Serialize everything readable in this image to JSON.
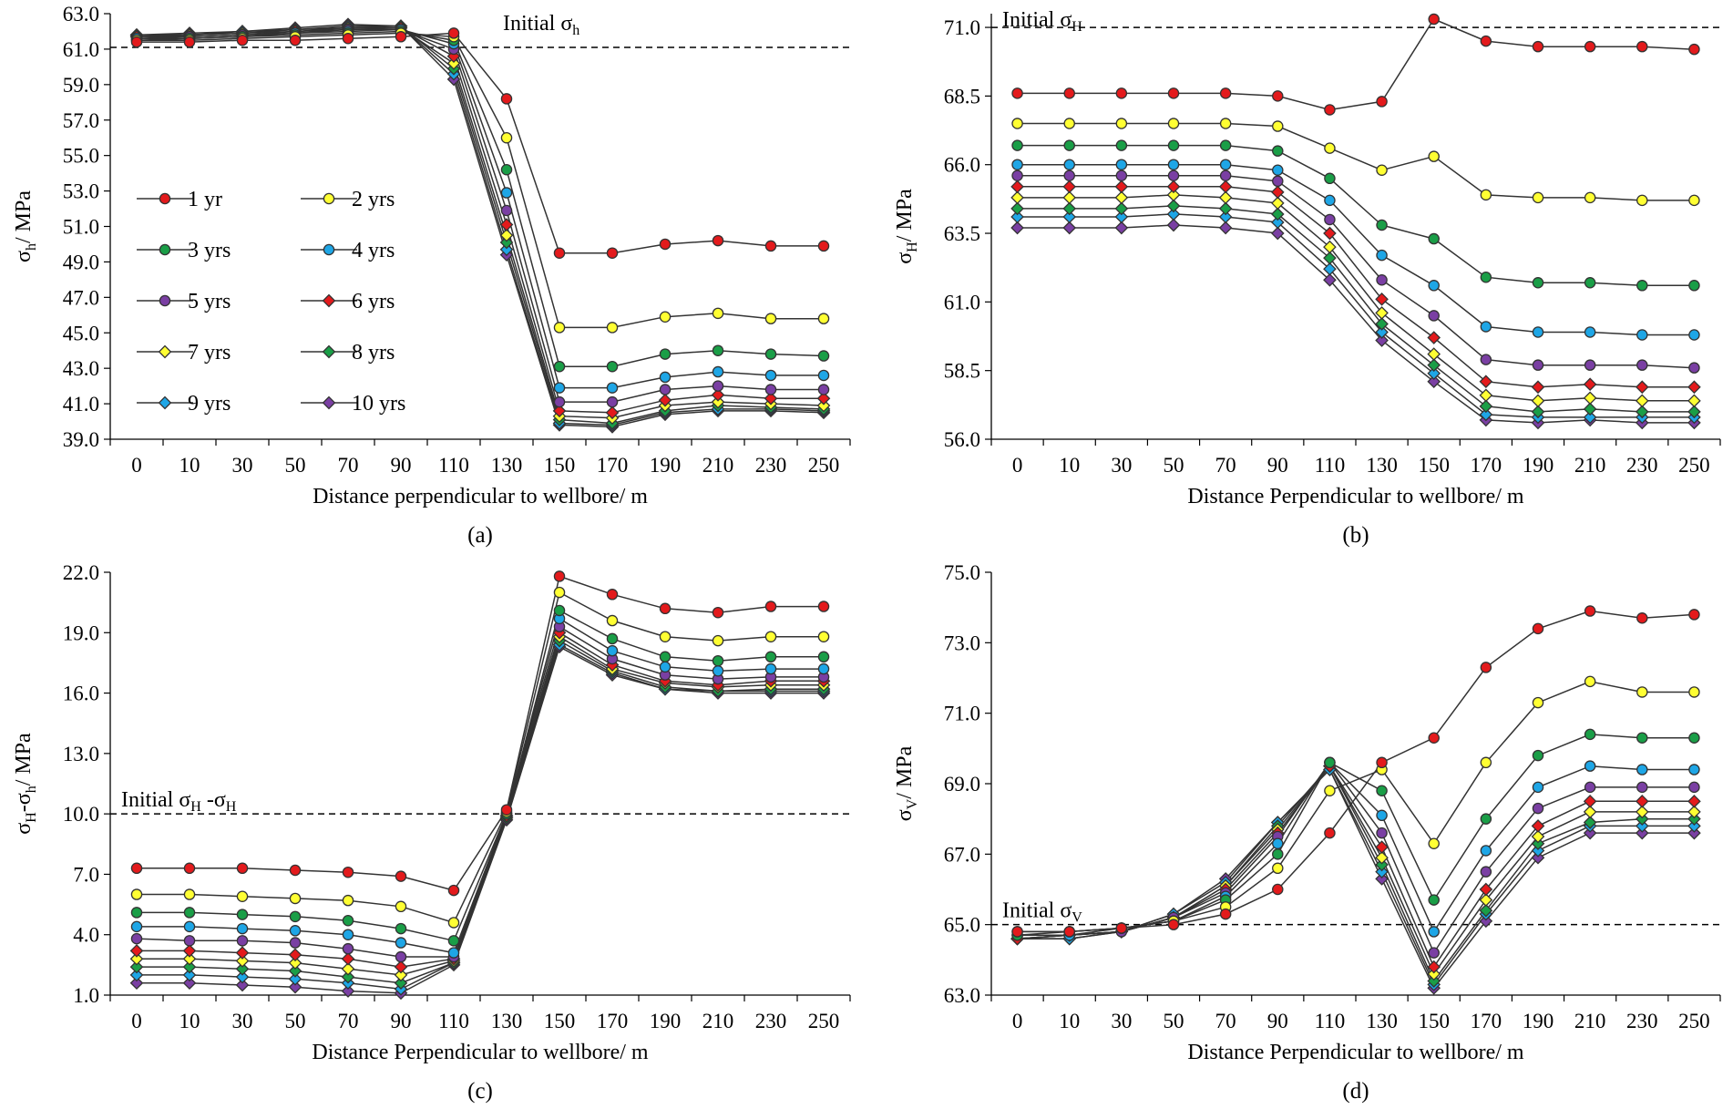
{
  "styles": {
    "series": [
      {
        "fill": "#e31a1c",
        "shape": "circle"
      },
      {
        "fill": "#ffff33",
        "shape": "circle"
      },
      {
        "fill": "#1a9e47",
        "shape": "circle"
      },
      {
        "fill": "#1ea6e6",
        "shape": "circle"
      },
      {
        "fill": "#7a3fa3",
        "shape": "circle"
      },
      {
        "fill": "#e31a1c",
        "shape": "diamond"
      },
      {
        "fill": "#ffff33",
        "shape": "diamond"
      },
      {
        "fill": "#1a9e47",
        "shape": "diamond"
      },
      {
        "fill": "#1ea6e6",
        "shape": "diamond"
      },
      {
        "fill": "#7a3fa3",
        "shape": "diamond"
      }
    ],
    "line_color": "#333333",
    "reference_line_color": "#000000"
  },
  "chart_data": [
    {
      "id": "a",
      "type": "line",
      "caption": "(a)",
      "xlabel": "Distance perpendicular to wellbore/ m",
      "ylabel": "σh/ MPa",
      "ylabel_main": "σ",
      "ylabel_sub": "h",
      "ylabel_rest": "/ MPa",
      "tick_labels": [
        "0",
        "10",
        "30",
        "50",
        "70",
        "90",
        "110",
        "130",
        "150",
        "170",
        "190",
        "210",
        "230",
        "250"
      ],
      "ylim": [
        39,
        63
      ],
      "ystep": 2,
      "ytick_decimals": 1,
      "reference": {
        "value": 61.1,
        "label": "Initial σh",
        "label_main": "Initial σ",
        "label_sub": "h",
        "label_pos": "top-center"
      },
      "legend": {
        "visible": true,
        "placement": "left-middle"
      },
      "series": [
        {
          "name": "1 yr",
          "values": [
            61.4,
            61.4,
            61.5,
            61.5,
            61.6,
            61.7,
            61.9,
            58.2,
            49.5,
            49.5,
            50.0,
            50.2,
            49.9,
            49.9
          ]
        },
        {
          "name": "2 yrs",
          "values": [
            61.5,
            61.5,
            61.6,
            61.7,
            61.8,
            61.9,
            61.7,
            56.0,
            45.3,
            45.3,
            45.9,
            46.1,
            45.8,
            45.8
          ]
        },
        {
          "name": "3 yrs",
          "values": [
            61.5,
            61.6,
            61.7,
            61.8,
            61.9,
            62.0,
            61.5,
            54.2,
            43.1,
            43.1,
            43.8,
            44.0,
            43.8,
            43.7
          ]
        },
        {
          "name": "4 yrs",
          "values": [
            61.6,
            61.6,
            61.7,
            61.9,
            62.0,
            62.1,
            61.3,
            52.9,
            41.9,
            41.9,
            42.5,
            42.8,
            42.6,
            42.6
          ]
        },
        {
          "name": "5 yrs",
          "values": [
            61.6,
            61.7,
            61.8,
            61.9,
            62.1,
            62.1,
            61.0,
            51.9,
            41.1,
            41.1,
            41.8,
            42.0,
            41.8,
            41.8
          ]
        },
        {
          "name": "6 yrs",
          "values": [
            61.7,
            61.7,
            61.8,
            62.0,
            62.1,
            62.2,
            60.6,
            51.1,
            40.6,
            40.5,
            41.2,
            41.5,
            41.3,
            41.3
          ]
        },
        {
          "name": "7 yrs",
          "values": [
            61.7,
            61.8,
            61.9,
            62.0,
            62.2,
            62.2,
            60.2,
            50.5,
            40.3,
            40.2,
            40.9,
            41.1,
            41.0,
            40.9
          ]
        },
        {
          "name": "8 yrs",
          "values": [
            61.8,
            61.8,
            61.9,
            62.1,
            62.2,
            62.3,
            59.9,
            50.1,
            40.1,
            39.9,
            40.6,
            40.9,
            40.8,
            40.7
          ]
        },
        {
          "name": "9 yrs",
          "values": [
            61.8,
            61.8,
            62.0,
            62.1,
            62.3,
            62.3,
            59.6,
            49.7,
            39.9,
            39.8,
            40.5,
            40.7,
            40.7,
            40.6
          ]
        },
        {
          "name": "10 yrs",
          "values": [
            61.8,
            61.9,
            62.0,
            62.2,
            62.4,
            62.3,
            59.3,
            49.4,
            39.8,
            39.7,
            40.4,
            40.6,
            40.6,
            40.5
          ]
        }
      ]
    },
    {
      "id": "b",
      "type": "line",
      "caption": "(b)",
      "xlabel": "Distance Perpendicular to wellbore/ m",
      "ylabel": "σH/ MPa",
      "ylabel_main": "σ",
      "ylabel_sub": "H",
      "ylabel_rest": "/ MPa",
      "tick_labels": [
        "0",
        "10",
        "30",
        "50",
        "70",
        "90",
        "110",
        "130",
        "150",
        "170",
        "190",
        "210",
        "230",
        "250"
      ],
      "ylim": [
        56,
        71.5
      ],
      "ystep": 2.5,
      "ytick_decimals": 1,
      "reference": {
        "value": 71.0,
        "label": "Initial σH",
        "label_main": "Initial σ",
        "label_sub": "H",
        "label_pos": "top-left"
      },
      "legend": {
        "visible": false
      },
      "series": [
        {
          "name": "1 yr",
          "values": [
            68.6,
            68.6,
            68.6,
            68.6,
            68.6,
            68.5,
            68.0,
            68.3,
            71.3,
            70.5,
            70.3,
            70.3,
            70.3,
            70.2
          ]
        },
        {
          "name": "2 yrs",
          "values": [
            67.5,
            67.5,
            67.5,
            67.5,
            67.5,
            67.4,
            66.6,
            65.8,
            66.3,
            64.9,
            64.8,
            64.8,
            64.7,
            64.7
          ]
        },
        {
          "name": "3 yrs",
          "values": [
            66.7,
            66.7,
            66.7,
            66.7,
            66.7,
            66.5,
            65.5,
            63.8,
            63.3,
            61.9,
            61.7,
            61.7,
            61.6,
            61.6
          ]
        },
        {
          "name": "4 yrs",
          "values": [
            66.0,
            66.0,
            66.0,
            66.0,
            66.0,
            65.8,
            64.7,
            62.7,
            61.6,
            60.1,
            59.9,
            59.9,
            59.8,
            59.8
          ]
        },
        {
          "name": "5 yrs",
          "values": [
            65.6,
            65.6,
            65.6,
            65.6,
            65.6,
            65.4,
            64.0,
            61.8,
            60.5,
            58.9,
            58.7,
            58.7,
            58.7,
            58.6
          ]
        },
        {
          "name": "6 yrs",
          "values": [
            65.2,
            65.2,
            65.2,
            65.2,
            65.2,
            65.0,
            63.5,
            61.1,
            59.7,
            58.1,
            57.9,
            58.0,
            57.9,
            57.9
          ]
        },
        {
          "name": "7 yrs",
          "values": [
            64.8,
            64.8,
            64.8,
            64.9,
            64.8,
            64.6,
            63.0,
            60.6,
            59.1,
            57.6,
            57.4,
            57.5,
            57.4,
            57.4
          ]
        },
        {
          "name": "8 yrs",
          "values": [
            64.4,
            64.4,
            64.4,
            64.5,
            64.4,
            64.2,
            62.6,
            60.2,
            58.7,
            57.2,
            57.0,
            57.1,
            57.0,
            57.0
          ]
        },
        {
          "name": "9 yrs",
          "values": [
            64.1,
            64.1,
            64.1,
            64.2,
            64.1,
            63.9,
            62.2,
            59.9,
            58.4,
            56.9,
            56.8,
            56.8,
            56.8,
            56.8
          ]
        },
        {
          "name": "10 yrs",
          "values": [
            63.7,
            63.7,
            63.7,
            63.8,
            63.7,
            63.5,
            61.8,
            59.6,
            58.1,
            56.7,
            56.6,
            56.7,
            56.6,
            56.6
          ]
        }
      ]
    },
    {
      "id": "c",
      "type": "line",
      "caption": "(c)",
      "xlabel": "Distance Perpendicular to wellbore/ m",
      "ylabel": "σH-σh/ MPa",
      "ylabel_main": "σ",
      "ylabel_sub": "H",
      "ylabel_mid": "-σ",
      "ylabel_sub2": "h",
      "ylabel_rest": "/ MPa",
      "tick_labels": [
        "0",
        "10",
        "30",
        "50",
        "70",
        "90",
        "110",
        "130",
        "150",
        "170",
        "190",
        "210",
        "230",
        "250"
      ],
      "ylim": [
        1,
        22
      ],
      "ystep": 3,
      "ytick_decimals": 1,
      "reference": {
        "value": 10.0,
        "label": "Initial σH -σH",
        "label_main": "Initial σ",
        "label_sub": "H",
        "label_mid": " -σ",
        "label_sub2": "H",
        "label_pos": "left-above"
      },
      "legend": {
        "visible": false
      },
      "series": [
        {
          "name": "1 yr",
          "values": [
            7.3,
            7.3,
            7.3,
            7.2,
            7.1,
            6.9,
            6.2,
            10.2,
            21.8,
            20.9,
            20.2,
            20.0,
            20.3,
            20.3
          ]
        },
        {
          "name": "2 yrs",
          "values": [
            6.0,
            6.0,
            5.9,
            5.8,
            5.7,
            5.4,
            4.6,
            10.1,
            21.0,
            19.6,
            18.8,
            18.6,
            18.8,
            18.8
          ]
        },
        {
          "name": "3 yrs",
          "values": [
            5.1,
            5.1,
            5.0,
            4.9,
            4.7,
            4.3,
            3.7,
            10.0,
            20.1,
            18.7,
            17.8,
            17.6,
            17.8,
            17.8
          ]
        },
        {
          "name": "4 yrs",
          "values": [
            4.4,
            4.4,
            4.3,
            4.2,
            4.0,
            3.6,
            3.1,
            10.0,
            19.7,
            18.1,
            17.3,
            17.1,
            17.2,
            17.2
          ]
        },
        {
          "name": "5 yrs",
          "values": [
            3.8,
            3.7,
            3.7,
            3.6,
            3.3,
            2.9,
            2.9,
            10.0,
            19.3,
            17.7,
            16.9,
            16.7,
            16.8,
            16.8
          ]
        },
        {
          "name": "6 yrs",
          "values": [
            3.2,
            3.2,
            3.1,
            3.0,
            2.8,
            2.4,
            2.8,
            9.9,
            19.0,
            17.4,
            16.6,
            16.4,
            16.6,
            16.6
          ]
        },
        {
          "name": "7 yrs",
          "values": [
            2.8,
            2.8,
            2.7,
            2.6,
            2.3,
            2.0,
            2.7,
            9.9,
            18.8,
            17.2,
            16.5,
            16.3,
            16.4,
            16.4
          ]
        },
        {
          "name": "8 yrs",
          "values": [
            2.4,
            2.4,
            2.3,
            2.2,
            1.9,
            1.6,
            2.6,
            9.8,
            18.6,
            17.1,
            16.3,
            16.1,
            16.2,
            16.2
          ]
        },
        {
          "name": "9 yrs",
          "values": [
            2.0,
            2.0,
            1.9,
            1.8,
            1.6,
            1.3,
            2.6,
            9.8,
            18.4,
            17.0,
            16.2,
            16.1,
            16.1,
            16.1
          ]
        },
        {
          "name": "10 yrs",
          "values": [
            1.6,
            1.6,
            1.5,
            1.4,
            1.2,
            1.1,
            2.5,
            9.7,
            18.3,
            16.9,
            16.2,
            16.0,
            16.0,
            16.0
          ]
        }
      ]
    },
    {
      "id": "d",
      "type": "line",
      "caption": "(d)",
      "xlabel": "Distance Perpendicular to wellbore/ m",
      "ylabel": "σV/ MPa",
      "ylabel_main": "σ",
      "ylabel_sub": "V",
      "ylabel_rest": "/ MPa",
      "tick_labels": [
        "0",
        "10",
        "30",
        "50",
        "70",
        "90",
        "110",
        "130",
        "150",
        "170",
        "190",
        "210",
        "230",
        "250"
      ],
      "ylim": [
        63,
        75
      ],
      "ystep": 2,
      "ytick_decimals": 1,
      "reference": {
        "value": 65.0,
        "label": "Initial σV",
        "label_main": "Initial σ",
        "label_sub": "V",
        "label_pos": "left-above"
      },
      "legend": {
        "visible": false
      },
      "series": [
        {
          "name": "1 yr",
          "values": [
            64.8,
            64.8,
            64.9,
            65.0,
            65.3,
            66.0,
            67.6,
            69.6,
            70.3,
            72.3,
            73.4,
            73.9,
            73.7,
            73.8
          ]
        },
        {
          "name": "2 yrs",
          "values": [
            64.8,
            64.8,
            64.9,
            65.1,
            65.5,
            66.6,
            68.8,
            69.4,
            67.3,
            69.6,
            71.3,
            71.9,
            71.6,
            71.6
          ]
        },
        {
          "name": "3 yrs",
          "values": [
            64.7,
            64.8,
            64.9,
            65.1,
            65.7,
            67.0,
            69.6,
            68.8,
            65.7,
            68.0,
            69.8,
            70.4,
            70.3,
            70.3
          ]
        },
        {
          "name": "4 yrs",
          "values": [
            64.7,
            64.7,
            64.9,
            65.1,
            65.8,
            67.3,
            69.6,
            68.1,
            64.8,
            67.1,
            68.9,
            69.5,
            69.4,
            69.4
          ]
        },
        {
          "name": "5 yrs",
          "values": [
            64.7,
            64.7,
            64.8,
            65.2,
            65.9,
            67.5,
            69.6,
            67.6,
            64.2,
            66.5,
            68.3,
            68.9,
            68.9,
            68.9
          ]
        },
        {
          "name": "6 yrs",
          "values": [
            64.6,
            64.7,
            64.8,
            65.2,
            66.0,
            67.6,
            69.5,
            67.2,
            63.8,
            66.0,
            67.8,
            68.5,
            68.5,
            68.5
          ]
        },
        {
          "name": "7 yrs",
          "values": [
            64.6,
            64.7,
            64.8,
            65.2,
            66.1,
            67.7,
            69.5,
            66.9,
            63.6,
            65.7,
            67.5,
            68.2,
            68.2,
            68.2
          ]
        },
        {
          "name": "8 yrs",
          "values": [
            64.6,
            64.7,
            64.8,
            65.2,
            66.1,
            67.8,
            69.5,
            66.7,
            63.4,
            65.4,
            67.3,
            67.9,
            68.0,
            68.0
          ]
        },
        {
          "name": "9 yrs",
          "values": [
            64.6,
            64.6,
            64.8,
            65.3,
            66.2,
            67.9,
            69.4,
            66.5,
            63.3,
            65.3,
            67.1,
            67.8,
            67.8,
            67.8
          ]
        },
        {
          "name": "10 yrs",
          "values": [
            64.6,
            64.6,
            64.8,
            65.3,
            66.3,
            67.9,
            69.4,
            66.3,
            63.2,
            65.1,
            66.9,
            67.6,
            67.6,
            67.6
          ]
        }
      ]
    }
  ]
}
